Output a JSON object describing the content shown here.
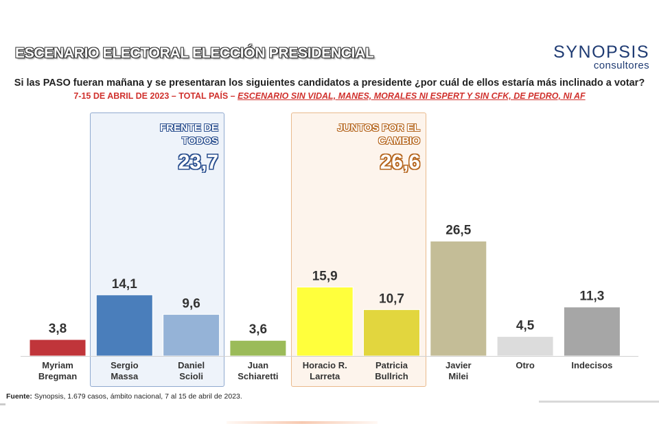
{
  "header": {
    "title": "ESCENARIO ELECTORAL ELECCIÓN PRESIDENCIAL",
    "logo_name": "SYNOPSIS",
    "logo_sub": "consultores"
  },
  "question": "Si las PASO fueran mañana y se presentaran los siguientes candidatos a presidente ¿por cuál de ellos estaría más inclinado a votar?",
  "subtitle_plain": "7-15 DE ABRIL DE 2023 – TOTAL PAÍS – ",
  "subtitle_scenario": "ESCENARIO SIN VIDAL, MANES, MORALES NI ESPERT Y SIN CFK, DE PEDRO, NI AF",
  "coalitions": {
    "fdt": {
      "label_line1": "FRENTE DE",
      "label_line2": "TODOS",
      "total": "23,7",
      "color": "#2a4f8f"
    },
    "jxc": {
      "label_line1": "JUNTOS POR EL",
      "label_line2": "CAMBIO",
      "total": "26,6",
      "color": "#b5651d"
    }
  },
  "chart_data": {
    "type": "bar",
    "title": "ESCENARIO ELECTORAL ELECCIÓN PRESIDENCIAL",
    "categories": [
      [
        "Myriam",
        "Bregman"
      ],
      [
        "Sergio",
        "Massa"
      ],
      [
        "Daniel",
        "Scioli"
      ],
      [
        "Juan",
        "Schiaretti"
      ],
      [
        "Horacio R.",
        "Larreta"
      ],
      [
        "Patricia",
        "Bullrich"
      ],
      [
        "Javier",
        "Milei"
      ],
      [
        "Otro"
      ],
      [
        "Indecisos"
      ]
    ],
    "values": [
      3.8,
      14.1,
      9.6,
      3.6,
      15.9,
      10.7,
      26.5,
      4.5,
      11.3
    ],
    "value_labels": [
      "3,8",
      "14,1",
      "9,6",
      "3,6",
      "15,9",
      "10,7",
      "26,5",
      "4,5",
      "11,3"
    ],
    "colors": [
      "#c0353a",
      "#4a7ebb",
      "#95b3d7",
      "#9bbb59",
      "#ffff3c",
      "#e2d63e",
      "#c4bd97",
      "#dcdcdc",
      "#a6a6a6"
    ],
    "xlabel": "",
    "ylabel": "",
    "ylim": [
      0,
      30
    ],
    "grid": false
  },
  "footer": {
    "label": "Fuente:",
    "text": " Synopsis, 1.679 casos, ámbito nacional, 7 al 15 de abril de 2023."
  }
}
